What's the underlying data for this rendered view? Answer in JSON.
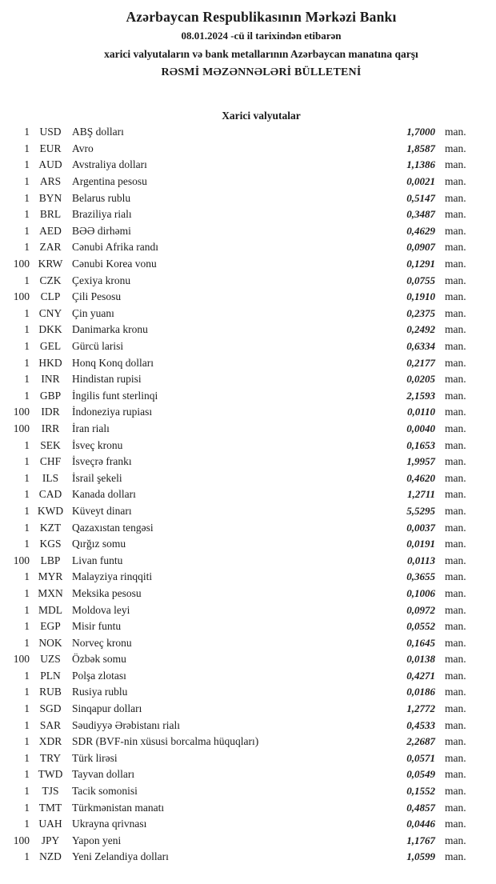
{
  "document": {
    "title": "Azərbaycan Respublikasının Mərkəzi Bankı",
    "date_line": "08.01.2024  -cü il tarixindən etibarən",
    "subtitle": "xarici valyutaların və bank metallarının Azərbaycan manatına qarşı",
    "bulletin_title": "RƏSMİ MƏZƏNNƏLƏRİ BÜLLETENİ",
    "section_title": "Xarici valyutalar"
  },
  "colors": {
    "text": "#1b1b1b",
    "background": "#ffffff"
  },
  "table": {
    "columns": [
      "quantity",
      "code",
      "currency_name",
      "rate",
      "unit"
    ],
    "rows": [
      {
        "qty": "1",
        "code": "USD",
        "name": "ABŞ dolları",
        "rate": "1,7000",
        "unit": "man."
      },
      {
        "qty": "1",
        "code": "EUR",
        "name": "Avro",
        "rate": "1,8587",
        "unit": "man."
      },
      {
        "qty": "1",
        "code": "AUD",
        "name": "Avstraliya dolları",
        "rate": "1,1386",
        "unit": "man."
      },
      {
        "qty": "1",
        "code": "ARS",
        "name": "Argentina pesosu",
        "rate": "0,0021",
        "unit": "man."
      },
      {
        "qty": "1",
        "code": "BYN",
        "name": "Belarus rublu",
        "rate": "0,5147",
        "unit": "man."
      },
      {
        "qty": "1",
        "code": "BRL",
        "name": "Braziliya rialı",
        "rate": "0,3487",
        "unit": "man."
      },
      {
        "qty": "1",
        "code": "AED",
        "name": "BƏƏ dirhəmi",
        "rate": "0,4629",
        "unit": "man."
      },
      {
        "qty": "1",
        "code": "ZAR",
        "name": "Cənubi Afrika randı",
        "rate": "0,0907",
        "unit": "man."
      },
      {
        "qty": "100",
        "code": "KRW",
        "name": "Cənubi Korea vonu",
        "rate": "0,1291",
        "unit": "man."
      },
      {
        "qty": "1",
        "code": "CZK",
        "name": "Çexiya kronu",
        "rate": "0,0755",
        "unit": "man."
      },
      {
        "qty": "100",
        "code": "CLP",
        "name": "Çili Pesosu",
        "rate": "0,1910",
        "unit": "man."
      },
      {
        "qty": "1",
        "code": "CNY",
        "name": "Çin yuanı",
        "rate": "0,2375",
        "unit": "man."
      },
      {
        "qty": "1",
        "code": "DKK",
        "name": "Danimarka kronu",
        "rate": "0,2492",
        "unit": "man."
      },
      {
        "qty": "1",
        "code": "GEL",
        "name": "Gürcü larisi",
        "rate": "0,6334",
        "unit": "man."
      },
      {
        "qty": "1",
        "code": "HKD",
        "name": "Honq Konq dolları",
        "rate": "0,2177",
        "unit": "man."
      },
      {
        "qty": "1",
        "code": "INR",
        "name": "Hindistan rupisi",
        "rate": "0,0205",
        "unit": "man."
      },
      {
        "qty": "1",
        "code": "GBP",
        "name": "İngilis funt sterlinqi",
        "rate": "2,1593",
        "unit": "man."
      },
      {
        "qty": "100",
        "code": "IDR",
        "name": "İndoneziya rupiası",
        "rate": "0,0110",
        "unit": "man."
      },
      {
        "qty": "100",
        "code": "IRR",
        "name": "İran rialı",
        "rate": "0,0040",
        "unit": "man."
      },
      {
        "qty": "1",
        "code": "SEK",
        "name": "İsveç kronu",
        "rate": "0,1653",
        "unit": "man."
      },
      {
        "qty": "1",
        "code": "CHF",
        "name": "İsveçrə frankı",
        "rate": "1,9957",
        "unit": "man."
      },
      {
        "qty": "1",
        "code": "ILS",
        "name": "İsrail şekeli",
        "rate": "0,4620",
        "unit": "man."
      },
      {
        "qty": "1",
        "code": "CAD",
        "name": "Kanada dolları",
        "rate": "1,2711",
        "unit": "man."
      },
      {
        "qty": "1",
        "code": "KWD",
        "name": "Küveyt dinarı",
        "rate": "5,5295",
        "unit": "man."
      },
      {
        "qty": "1",
        "code": "KZT",
        "name": "Qazaxıstan tengəsi",
        "rate": "0,0037",
        "unit": "man."
      },
      {
        "qty": "1",
        "code": "KGS",
        "name": "Qırğız somu",
        "rate": "0,0191",
        "unit": "man."
      },
      {
        "qty": "100",
        "code": "LBP",
        "name": "Livan funtu",
        "rate": "0,0113",
        "unit": "man."
      },
      {
        "qty": "1",
        "code": "MYR",
        "name": "Malayziya rinqqiti",
        "rate": "0,3655",
        "unit": "man."
      },
      {
        "qty": "1",
        "code": "MXN",
        "name": "Meksika pesosu",
        "rate": "0,1006",
        "unit": "man."
      },
      {
        "qty": "1",
        "code": "MDL",
        "name": "Moldova leyi",
        "rate": "0,0972",
        "unit": "man."
      },
      {
        "qty": "1",
        "code": "EGP",
        "name": "Misir funtu",
        "rate": "0,0552",
        "unit": "man."
      },
      {
        "qty": "1",
        "code": "NOK",
        "name": "Norveç kronu",
        "rate": "0,1645",
        "unit": "man."
      },
      {
        "qty": "100",
        "code": "UZS",
        "name": "Özbək somu",
        "rate": "0,0138",
        "unit": "man."
      },
      {
        "qty": "1",
        "code": "PLN",
        "name": "Polşa zlotası",
        "rate": "0,4271",
        "unit": "man."
      },
      {
        "qty": "1",
        "code": "RUB",
        "name": "Rusiya rublu",
        "rate": "0,0186",
        "unit": "man."
      },
      {
        "qty": "1",
        "code": "SGD",
        "name": "Sinqapur dolları",
        "rate": "1,2772",
        "unit": "man."
      },
      {
        "qty": "1",
        "code": "SAR",
        "name": "Səudiyyə Ərəbistanı rialı",
        "rate": "0,4533",
        "unit": "man."
      },
      {
        "qty": "1",
        "code": "XDR",
        "name": "SDR (BVF-nin xüsusi borcalma hüquqları)",
        "rate": "2,2687",
        "unit": "man."
      },
      {
        "qty": "1",
        "code": "TRY",
        "name": "Türk lirəsi",
        "rate": "0,0571",
        "unit": "man."
      },
      {
        "qty": "1",
        "code": "TWD",
        "name": "Tayvan dolları",
        "rate": "0,0549",
        "unit": "man."
      },
      {
        "qty": "1",
        "code": "TJS",
        "name": "Tacik somonisi",
        "rate": "0,1552",
        "unit": "man."
      },
      {
        "qty": "1",
        "code": "TMT",
        "name": "Türkmənistan manatı",
        "rate": "0,4857",
        "unit": "man."
      },
      {
        "qty": "1",
        "code": "UAH",
        "name": "Ukrayna qrivnası",
        "rate": "0,0446",
        "unit": "man."
      },
      {
        "qty": "100",
        "code": "JPY",
        "name": "Yapon yeni",
        "rate": "1,1767",
        "unit": "man."
      },
      {
        "qty": "1",
        "code": "NZD",
        "name": "Yeni Zelandiya dolları",
        "rate": "1,0599",
        "unit": "man."
      }
    ]
  }
}
